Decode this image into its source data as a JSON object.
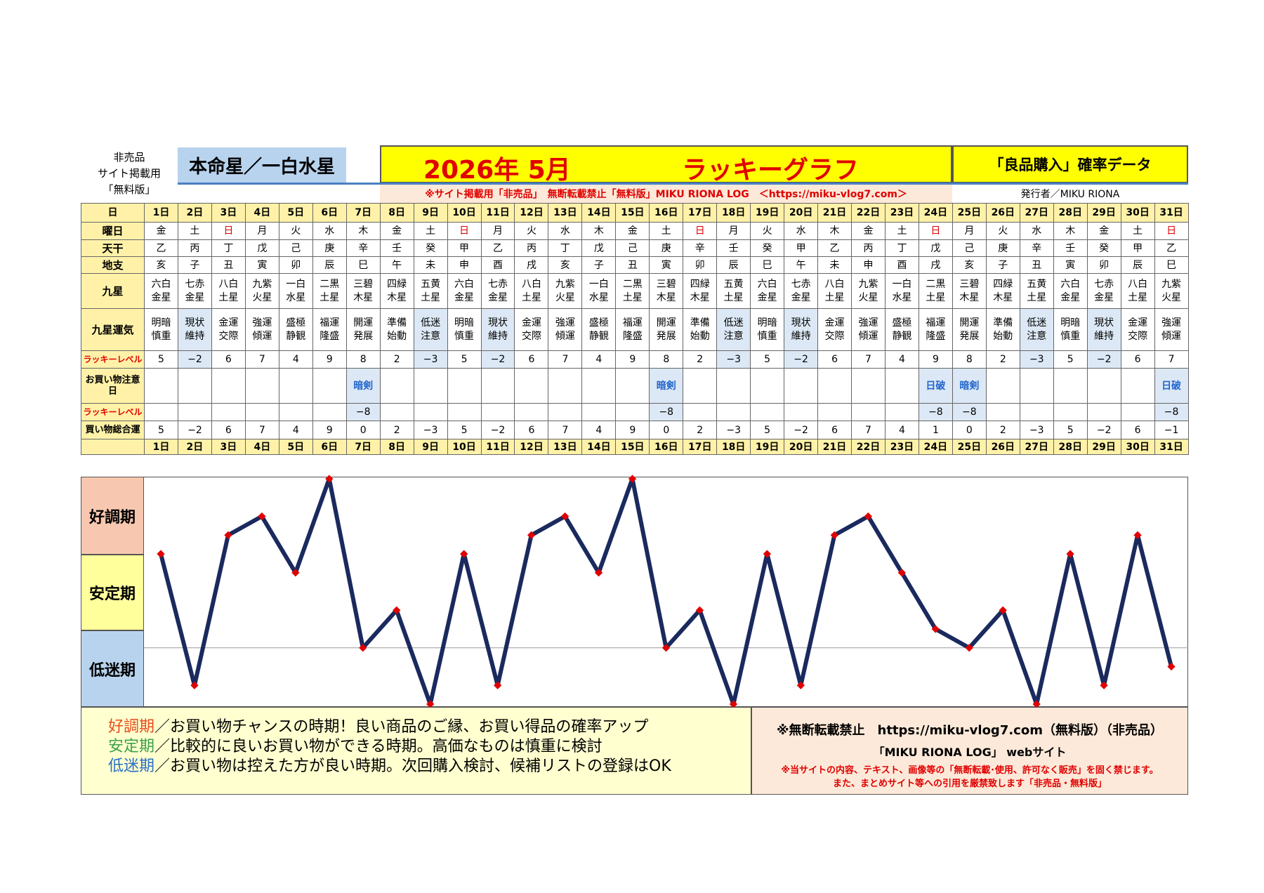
{
  "header": {
    "left_lines": [
      "非売品",
      "サイト掲載用",
      "「無料版」"
    ],
    "honmei": "本命星／一白水星",
    "year_month": "2026年 5月",
    "graph_title": "ラッキーグラフ",
    "right_title": "「良品購入」確率データ",
    "notice": "※サイト掲載用「非売品」　無断転載禁止「無料版」MIKU RIONA LOG　＜https://miku-vlog7.com＞",
    "publisher": "発行者／MIKU RIONA"
  },
  "table": {
    "labels": {
      "day": "日",
      "weekday": "曜日",
      "tenkan": "天干",
      "chishi": "地支",
      "kyusei": "九星",
      "kyusei_unki": "九星運気",
      "lucky_level": "ラッキーレベル",
      "caution": "お買い物注意日",
      "lucky_level2": "ラッキーレベル",
      "total": "買い物総合運"
    },
    "days": [
      "1日",
      "2日",
      "3日",
      "4日",
      "5日",
      "6日",
      "7日",
      "8日",
      "9日",
      "10日",
      "11日",
      "12日",
      "13日",
      "14日",
      "15日",
      "16日",
      "17日",
      "18日",
      "19日",
      "20日",
      "21日",
      "22日",
      "23日",
      "24日",
      "25日",
      "26日",
      "27日",
      "28日",
      "29日",
      "30日",
      "31日"
    ],
    "weekdays": [
      "金",
      "土",
      "日",
      "月",
      "火",
      "水",
      "木",
      "金",
      "土",
      "日",
      "月",
      "火",
      "水",
      "木",
      "金",
      "土",
      "日",
      "月",
      "火",
      "水",
      "木",
      "金",
      "土",
      "日",
      "月",
      "火",
      "水",
      "木",
      "金",
      "土",
      "日"
    ],
    "tenkan": [
      "乙",
      "丙",
      "丁",
      "戊",
      "己",
      "庚",
      "辛",
      "壬",
      "癸",
      "甲",
      "乙",
      "丙",
      "丁",
      "戊",
      "己",
      "庚",
      "辛",
      "壬",
      "癸",
      "甲",
      "乙",
      "丙",
      "丁",
      "戊",
      "己",
      "庚",
      "辛",
      "壬",
      "癸",
      "甲",
      "乙"
    ],
    "chishi": [
      "亥",
      "子",
      "丑",
      "寅",
      "卯",
      "辰",
      "巳",
      "午",
      "未",
      "申",
      "酉",
      "戌",
      "亥",
      "子",
      "丑",
      "寅",
      "卯",
      "辰",
      "巳",
      "午",
      "未",
      "申",
      "酉",
      "戌",
      "亥",
      "子",
      "丑",
      "寅",
      "卯",
      "辰",
      "巳"
    ],
    "kyusei": [
      [
        "六白",
        "金星"
      ],
      [
        "七赤",
        "金星"
      ],
      [
        "八白",
        "土星"
      ],
      [
        "九紫",
        "火星"
      ],
      [
        "一白",
        "水星"
      ],
      [
        "二黒",
        "土星"
      ],
      [
        "三碧",
        "木星"
      ],
      [
        "四緑",
        "木星"
      ],
      [
        "五黄",
        "土星"
      ],
      [
        "六白",
        "金星"
      ],
      [
        "七赤",
        "金星"
      ],
      [
        "八白",
        "土星"
      ],
      [
        "九紫",
        "火星"
      ],
      [
        "一白",
        "水星"
      ],
      [
        "二黒",
        "土星"
      ],
      [
        "三碧",
        "木星"
      ],
      [
        "四緑",
        "木星"
      ],
      [
        "五黄",
        "土星"
      ],
      [
        "六白",
        "金星"
      ],
      [
        "七赤",
        "金星"
      ],
      [
        "八白",
        "土星"
      ],
      [
        "九紫",
        "火星"
      ],
      [
        "一白",
        "水星"
      ],
      [
        "二黒",
        "土星"
      ],
      [
        "三碧",
        "木星"
      ],
      [
        "四緑",
        "木星"
      ],
      [
        "五黄",
        "土星"
      ],
      [
        "六白",
        "金星"
      ],
      [
        "七赤",
        "金星"
      ],
      [
        "八白",
        "土星"
      ],
      [
        "九紫",
        "火星"
      ]
    ],
    "unki": [
      [
        "明暗",
        "慎重"
      ],
      [
        "現状",
        "維持"
      ],
      [
        "金運",
        "交際"
      ],
      [
        "強運",
        "傾運"
      ],
      [
        "盛極",
        "静観"
      ],
      [
        "福運",
        "隆盛"
      ],
      [
        "開運",
        "発展"
      ],
      [
        "準備",
        "始動"
      ],
      [
        "低迷",
        "注意"
      ],
      [
        "明暗",
        "慎重"
      ],
      [
        "現状",
        "維持"
      ],
      [
        "金運",
        "交際"
      ],
      [
        "強運",
        "傾運"
      ],
      [
        "盛極",
        "静観"
      ],
      [
        "福運",
        "隆盛"
      ],
      [
        "開運",
        "発展"
      ],
      [
        "準備",
        "始動"
      ],
      [
        "低迷",
        "注意"
      ],
      [
        "明暗",
        "慎重"
      ],
      [
        "現状",
        "維持"
      ],
      [
        "金運",
        "交際"
      ],
      [
        "強運",
        "傾運"
      ],
      [
        "盛極",
        "静観"
      ],
      [
        "福運",
        "隆盛"
      ],
      [
        "開運",
        "発展"
      ],
      [
        "準備",
        "始動"
      ],
      [
        "低迷",
        "注意"
      ],
      [
        "明暗",
        "慎重"
      ],
      [
        "現状",
        "維持"
      ],
      [
        "金運",
        "交際"
      ],
      [
        "強運",
        "傾運"
      ]
    ],
    "lucky_level": [
      "5",
      "−2",
      "6",
      "7",
      "4",
      "9",
      "8",
      "2",
      "−3",
      "5",
      "−2",
      "6",
      "7",
      "4",
      "9",
      "8",
      "2",
      "−3",
      "5",
      "−2",
      "6",
      "7",
      "4",
      "9",
      "8",
      "2",
      "−3",
      "5",
      "−2",
      "6",
      "7"
    ],
    "caution": [
      "",
      "",
      "",
      "",
      "",
      "",
      "暗剣",
      "",
      "",
      "",
      "",
      "",
      "",
      "",
      "",
      "暗剣",
      "",
      "",
      "",
      "",
      "",
      "",
      "",
      "日破",
      "暗剣",
      "",
      "",
      "",
      "",
      "",
      "日破"
    ],
    "lucky_level2": [
      "",
      "",
      "",
      "",
      "",
      "",
      "−8",
      "",
      "",
      "",
      "",
      "",
      "",
      "",
      "",
      "−8",
      "",
      "",
      "",
      "",
      "",
      "",
      "",
      "−8",
      "−8",
      "",
      "",
      "",
      "",
      "",
      "−8"
    ],
    "total": [
      "5",
      "−2",
      "6",
      "7",
      "4",
      "9",
      "0",
      "2",
      "−3",
      "5",
      "−2",
      "6",
      "7",
      "4",
      "9",
      "0",
      "2",
      "−3",
      "5",
      "−2",
      "6",
      "7",
      "4",
      "1",
      "0",
      "2",
      "−3",
      "5",
      "−2",
      "6",
      "−1"
    ]
  },
  "phases": {
    "good": "好調期",
    "stable": "安定期",
    "low": "低迷期"
  },
  "chart_data": {
    "type": "line",
    "x": [
      1,
      2,
      3,
      4,
      5,
      6,
      7,
      8,
      9,
      10,
      11,
      12,
      13,
      14,
      15,
      16,
      17,
      18,
      19,
      20,
      21,
      22,
      23,
      24,
      25,
      26,
      27,
      28,
      29,
      30,
      31
    ],
    "series": [
      {
        "values": [
          5,
          -2,
          6,
          7,
          4,
          9,
          0,
          2,
          -3,
          5,
          -2,
          6,
          7,
          4,
          9,
          0,
          2,
          -3,
          5,
          -2,
          6,
          7,
          4,
          1,
          0,
          2,
          -3,
          5,
          -2,
          6,
          -1
        ]
      }
    ],
    "ylim": [
      -3,
      9
    ],
    "line_color": "#1a2a5e",
    "marker_color": "#e00000"
  },
  "legend": {
    "good_label": "好調期",
    "good_text": "／お買い物チャンスの時期！良い商品のご縁、お買い得品の確率アップ",
    "stable_label": "安定期",
    "stable_text": "／比較的に良いお買い物ができる時期。高価なものは慎重に検討",
    "low_label": "低迷期",
    "low_text": "／お買い物は控えた方が良い時期。次回購入検討、候補リストの登録はOK"
  },
  "info": {
    "line1": "※無断転載禁止　https://miku-vlog7.com（無料版）（非売品）",
    "line2": "「MIKU RIONA LOG」 webサイト",
    "line3": "※当サイトの内容、テキスト、画像等の「無断転載･使用、許可なく販売」を固く禁じます。",
    "line4": "また、まとめサイト等への引用を厳禁致します「非売品・無料版」"
  }
}
